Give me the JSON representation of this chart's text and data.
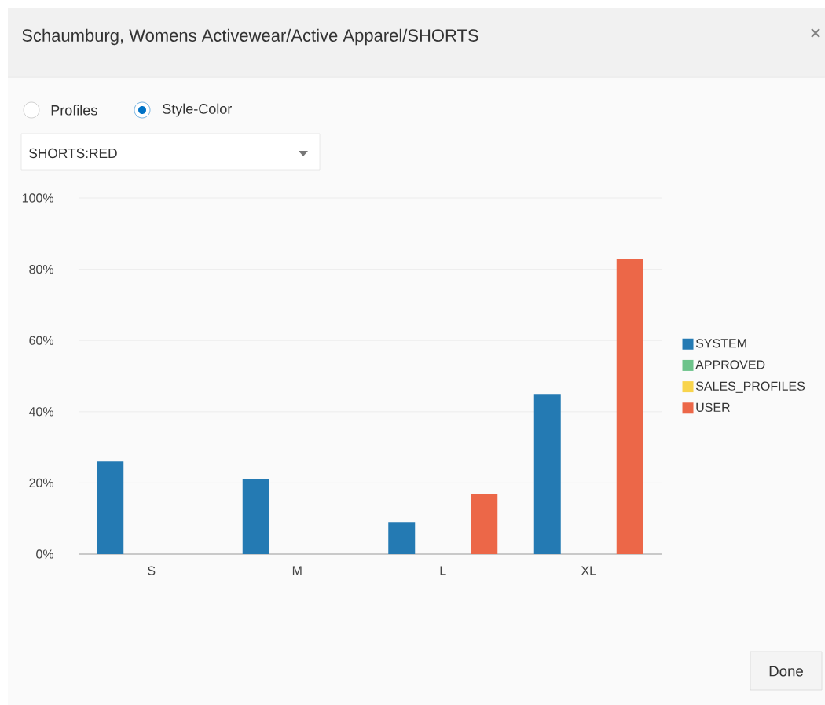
{
  "chart_data": {
    "type": "bar",
    "title": "Schaumburg, Womens Activewear/Active Apparel/SHORTS",
    "annotations": [
      "Profiles",
      "Style-Color",
      "SHORTS:RED",
      "Done"
    ],
    "categories": [
      "S",
      "M",
      "L",
      "XL"
    ],
    "series": [
      {
        "name": "SYSTEM",
        "color": "#247ab3",
        "values": [
          26,
          21,
          9,
          45
        ]
      },
      {
        "name": "APPROVED",
        "color": "#6cc38a",
        "values": [
          null,
          null,
          null,
          null
        ]
      },
      {
        "name": "SALES_PROFILES",
        "color": "#f8d44c",
        "values": [
          null,
          null,
          null,
          null
        ]
      },
      {
        "name": "USER",
        "color": "#ec6748",
        "values": [
          null,
          null,
          17,
          83
        ]
      }
    ],
    "ylim": [
      0,
      100
    ],
    "yticks": [
      {
        "value": 0,
        "label": "0%"
      },
      {
        "value": 20,
        "label": "20%"
      },
      {
        "value": 40,
        "label": "40%"
      },
      {
        "value": 60,
        "label": "60%"
      },
      {
        "value": 80,
        "label": "80%"
      },
      {
        "value": 100,
        "label": "100%"
      }
    ],
    "grid": "y",
    "legend": "right"
  }
}
